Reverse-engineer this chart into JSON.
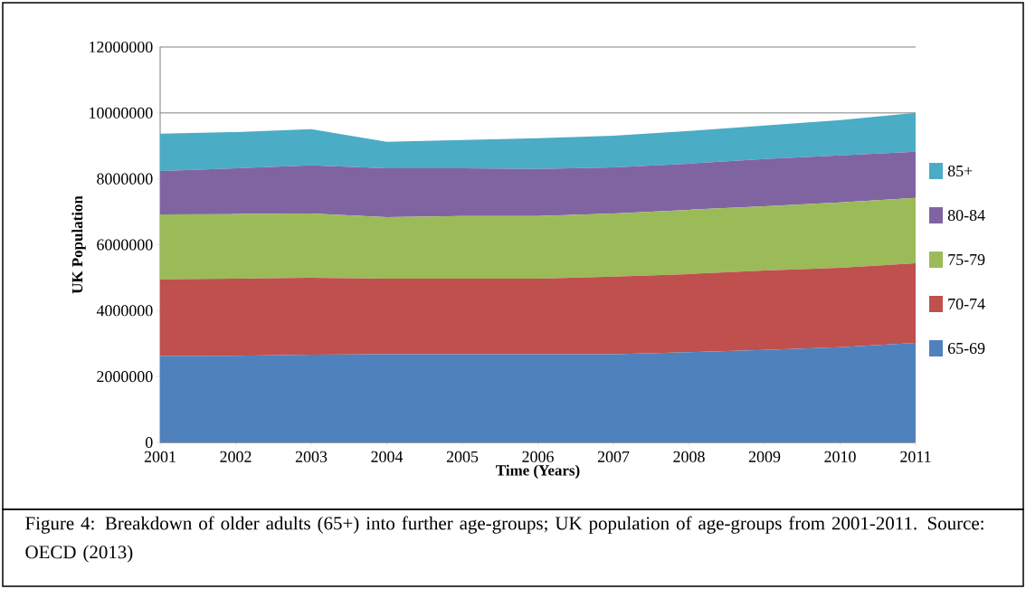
{
  "chart_data": {
    "type": "area",
    "stacked": true,
    "xlabel": "Time (Years)",
    "ylabel": "UK Population",
    "x": [
      2001,
      2002,
      2003,
      2004,
      2005,
      2006,
      2007,
      2008,
      2009,
      2010,
      2011
    ],
    "series": [
      {
        "name": "65-69",
        "color": "#4f81bd",
        "values": [
          2620000,
          2630000,
          2660000,
          2680000,
          2680000,
          2680000,
          2680000,
          2740000,
          2810000,
          2890000,
          3020000
        ]
      },
      {
        "name": "70-74",
        "color": "#c0504d",
        "values": [
          2330000,
          2340000,
          2340000,
          2290000,
          2290000,
          2290000,
          2350000,
          2370000,
          2410000,
          2410000,
          2420000
        ]
      },
      {
        "name": "75-79",
        "color": "#9bbb59",
        "values": [
          1970000,
          1960000,
          1950000,
          1870000,
          1900000,
          1900000,
          1920000,
          1950000,
          1950000,
          1980000,
          1980000
        ]
      },
      {
        "name": "80-84",
        "color": "#8064a2",
        "values": [
          1320000,
          1390000,
          1460000,
          1480000,
          1450000,
          1430000,
          1400000,
          1400000,
          1430000,
          1430000,
          1400000
        ]
      },
      {
        "name": "85+",
        "color": "#4bacc6",
        "values": [
          1130000,
          1100000,
          1100000,
          800000,
          860000,
          930000,
          960000,
          990000,
          1020000,
          1070000,
          1180000
        ]
      }
    ],
    "xlim": [
      2001,
      2011
    ],
    "xticks": [
      2001,
      2002,
      2003,
      2004,
      2005,
      2006,
      2007,
      2008,
      2009,
      2010,
      2011
    ],
    "ylim": [
      0,
      12000000
    ],
    "yticks": [
      0,
      2000000,
      4000000,
      6000000,
      8000000,
      10000000,
      12000000
    ],
    "grid": "y",
    "legend": "right",
    "annotations": [
      "Figure 4: Breakdown of older adults (65+) into further age-groups; UK population of age-groups from 2001-2011. Source:  OECD (2013)"
    ]
  }
}
